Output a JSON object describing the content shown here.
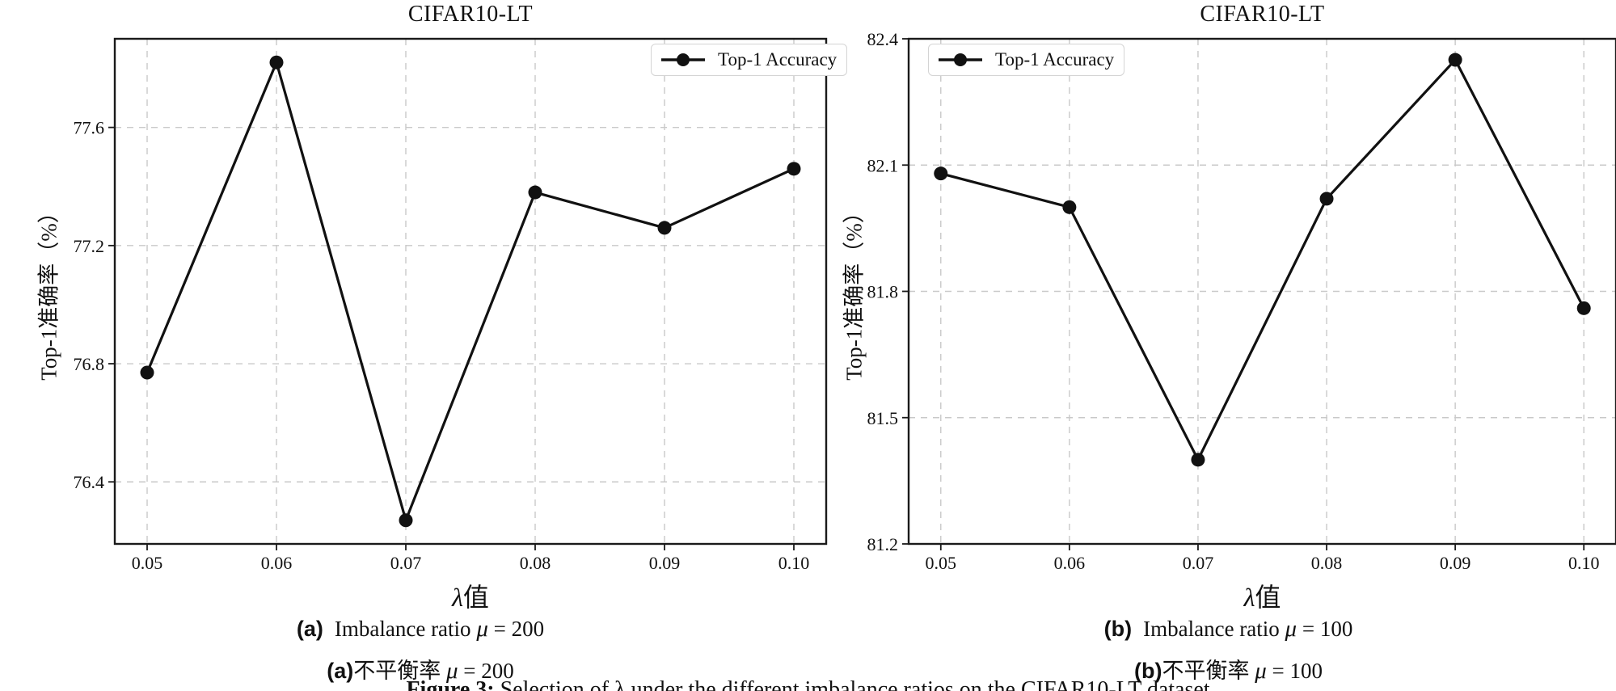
{
  "figure": {
    "figure_caption": {
      "prefix": "Figure 3:",
      "text": " Selection of λ under the different imbalance ratios on the CIFAR10-LT dataset"
    }
  },
  "chart_data": [
    {
      "type": "line",
      "title": "CIFAR10-LT",
      "xlabel_symbol": "λ",
      "xlabel_suffix": "值",
      "ylabel": "Top-1准确率（%）",
      "legend": {
        "label": "Top-1 Accuracy",
        "position": "top-right"
      },
      "x": [
        0.05,
        0.06,
        0.07,
        0.08,
        0.09,
        0.1
      ],
      "xtick_labels": [
        "0.05",
        "0.06",
        "0.07",
        "0.08",
        "0.09",
        "0.10"
      ],
      "series": [
        {
          "name": "Top-1 Accuracy",
          "values": [
            76.77,
            77.82,
            76.27,
            77.38,
            77.26,
            77.46
          ]
        }
      ],
      "xlim": [
        0.0475,
        0.1025
      ],
      "ylim": [
        76.19,
        77.9
      ],
      "yticks": [
        76.4,
        76.8,
        77.2,
        77.6
      ],
      "ytick_labels": [
        "76.4",
        "76.8",
        "77.2",
        "77.6"
      ],
      "grid": true,
      "line_color": "#111111",
      "grid_color": "#c9c9c9",
      "captions": [
        {
          "label": "(a)",
          "text": "Imbalance ratio",
          "formula_symbol": "μ",
          "formula_rest": " = 200"
        },
        {
          "label": "(a)",
          "text": "不平衡率",
          "formula_symbol": "μ",
          "formula_rest": " = 200"
        }
      ]
    },
    {
      "type": "line",
      "title": "CIFAR10-LT",
      "xlabel_symbol": "λ",
      "xlabel_suffix": "值",
      "ylabel": "Top-1准确率（%）",
      "legend": {
        "label": "Top-1 Accuracy",
        "position": "top-left"
      },
      "x": [
        0.05,
        0.06,
        0.07,
        0.08,
        0.09,
        0.1
      ],
      "xtick_labels": [
        "0.05",
        "0.06",
        "0.07",
        "0.08",
        "0.09",
        "0.10"
      ],
      "series": [
        {
          "name": "Top-1 Accuracy",
          "values": [
            82.08,
            82.0,
            81.4,
            82.02,
            82.35,
            81.76
          ]
        }
      ],
      "xlim": [
        0.0475,
        0.1025
      ],
      "ylim": [
        81.2,
        82.4
      ],
      "yticks": [
        81.2,
        81.5,
        81.8,
        82.1,
        82.4
      ],
      "ytick_labels": [
        "81.2",
        "81.5",
        "81.8",
        "82.1",
        "82.4"
      ],
      "grid": true,
      "line_color": "#111111",
      "grid_color": "#c9c9c9",
      "captions": [
        {
          "label": "(b)",
          "text": "Imbalance ratio",
          "formula_symbol": "μ",
          "formula_rest": " = 100"
        },
        {
          "label": "(b)",
          "text": "不平衡率",
          "formula_symbol": "μ",
          "formula_rest": " = 100"
        }
      ]
    }
  ]
}
